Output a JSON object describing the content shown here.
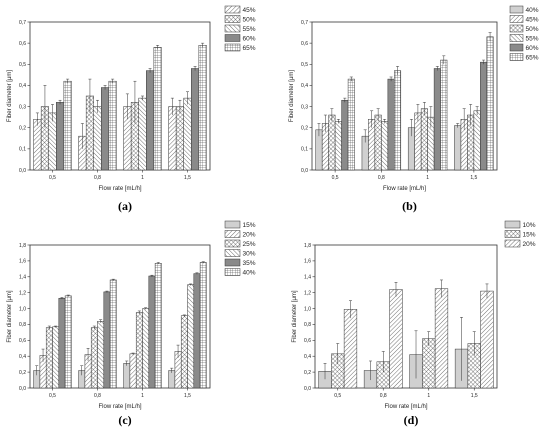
{
  "chart_data": [
    {
      "type": "bar",
      "panel_label": "(a)",
      "xlabel": "Flow rate [mL/h]",
      "ylabel": "Fiber diameter [μm]",
      "categories": [
        "0,5",
        "0,8",
        "1",
        "1,5"
      ],
      "ylim": [
        0,
        0.7
      ],
      "yticks": [
        "0,0",
        "0,1",
        "0,2",
        "0,3",
        "0,4",
        "0,5",
        "0,6",
        "0,7"
      ],
      "legend_position": "top-right",
      "series": [
        {
          "name": "45%",
          "values": [
            0.24,
            0.16,
            0.3,
            0.3
          ],
          "errors": [
            0.03,
            0.06,
            0.06,
            0.04
          ],
          "pattern": "diag-right"
        },
        {
          "name": "50%",
          "values": [
            0.3,
            0.35,
            0.32,
            0.3
          ],
          "errors": [
            0.1,
            0.08,
            0.1,
            0.03
          ],
          "pattern": "crosshatch"
        },
        {
          "name": "55%",
          "values": [
            0.27,
            0.3,
            0.34,
            0.34
          ],
          "errors": [
            0.04,
            0.03,
            0.01,
            0.03
          ],
          "pattern": "diag-left"
        },
        {
          "name": "60%",
          "values": [
            0.32,
            0.39,
            0.47,
            0.48
          ],
          "errors": [
            0.01,
            0.01,
            0.01,
            0.01
          ],
          "pattern": "solid-gray"
        },
        {
          "name": "65%",
          "values": [
            0.42,
            0.42,
            0.58,
            0.59
          ],
          "errors": [
            0.01,
            0.01,
            0.01,
            0.01
          ],
          "pattern": "grid"
        }
      ]
    },
    {
      "type": "bar",
      "panel_label": "(b)",
      "xlabel": "Flow rate [mL/h]",
      "ylabel": "Fiber diameter [μm]",
      "categories": [
        "0,5",
        "0,8",
        "1",
        "1,5"
      ],
      "ylim": [
        0,
        0.7
      ],
      "yticks": [
        "0,0",
        "0,1",
        "0,2",
        "0,3",
        "0,4",
        "0,5",
        "0,6",
        "0,7"
      ],
      "legend_position": "top-right",
      "series": [
        {
          "name": "40%",
          "values": [
            0.19,
            0.16,
            0.2,
            0.21
          ],
          "errors": [
            0.03,
            0.03,
            0.04,
            0.01
          ],
          "pattern": "light-gray"
        },
        {
          "name": "45%",
          "values": [
            0.22,
            0.24,
            0.27,
            0.24
          ],
          "errors": [
            0.04,
            0.04,
            0.04,
            0.05
          ],
          "pattern": "diag-right"
        },
        {
          "name": "50%",
          "values": [
            0.26,
            0.26,
            0.29,
            0.26
          ],
          "errors": [
            0.03,
            0.03,
            0.03,
            0.05
          ],
          "pattern": "crosshatch"
        },
        {
          "name": "55%",
          "values": [
            0.23,
            0.23,
            0.25,
            0.28
          ],
          "errors": [
            0.01,
            0.01,
            0.05,
            0.02
          ],
          "pattern": "diag-left"
        },
        {
          "name": "60%",
          "values": [
            0.33,
            0.43,
            0.48,
            0.51
          ],
          "errors": [
            0.01,
            0.01,
            0.01,
            0.01
          ],
          "pattern": "solid-gray"
        },
        {
          "name": "65%",
          "values": [
            0.43,
            0.47,
            0.52,
            0.63
          ],
          "errors": [
            0.01,
            0.02,
            0.02,
            0.02
          ],
          "pattern": "grid"
        }
      ]
    },
    {
      "type": "bar",
      "panel_label": "(c)",
      "xlabel": "Flow rate [mL/h]",
      "ylabel": "Fiber diameter [μm]",
      "categories": [
        "0,5",
        "0,8",
        "1",
        "1,5"
      ],
      "ylim": [
        0,
        1.8
      ],
      "yticks": [
        "0,0",
        "0,2",
        "0,4",
        "0,6",
        "0,8",
        "1,0",
        "1,2",
        "1,4",
        "1,6",
        "1,8"
      ],
      "legend_position": "top-right",
      "series": [
        {
          "name": "15%",
          "values": [
            0.22,
            0.22,
            0.31,
            0.22
          ],
          "errors": [
            0.06,
            0.06,
            0.03,
            0.03
          ],
          "pattern": "light-gray"
        },
        {
          "name": "20%",
          "values": [
            0.41,
            0.42,
            0.43,
            0.46
          ],
          "errors": [
            0.08,
            0.08,
            0.01,
            0.08
          ],
          "pattern": "diag-right"
        },
        {
          "name": "25%",
          "values": [
            0.76,
            0.76,
            0.95,
            0.91
          ],
          "errors": [
            0.02,
            0.02,
            0.02,
            0.01
          ],
          "pattern": "crosshatch"
        },
        {
          "name": "30%",
          "values": [
            0.77,
            0.84,
            1.0,
            1.3
          ],
          "errors": [
            0.01,
            0.02,
            0.01,
            0.01
          ],
          "pattern": "diag-left"
        },
        {
          "name": "35%",
          "values": [
            1.13,
            1.21,
            1.41,
            1.44
          ],
          "errors": [
            0.01,
            0.01,
            0.01,
            0.01
          ],
          "pattern": "solid-gray"
        },
        {
          "name": "40%",
          "values": [
            1.16,
            1.36,
            1.57,
            1.58
          ],
          "errors": [
            0.01,
            0.01,
            0.01,
            0.01
          ],
          "pattern": "grid"
        }
      ]
    },
    {
      "type": "bar",
      "panel_label": "(d)",
      "xlabel": "Flow rate [mL/h]",
      "ylabel": "Fiber diameter [μm]",
      "categories": [
        "0,5",
        "0,8",
        "1",
        "1,5"
      ],
      "ylim": [
        0,
        1.8
      ],
      "yticks": [
        "0,0",
        "0,2",
        "0,4",
        "0,6",
        "0,8",
        "1,0",
        "1,2",
        "1,4",
        "1,6",
        "1,8"
      ],
      "legend_position": "top-right",
      "series": [
        {
          "name": "10%",
          "values": [
            0.21,
            0.22,
            0.42,
            0.49
          ],
          "errors": [
            0.1,
            0.12,
            0.3,
            0.4
          ],
          "pattern": "light-gray"
        },
        {
          "name": "15%",
          "values": [
            0.43,
            0.33,
            0.62,
            0.56
          ],
          "errors": [
            0.13,
            0.13,
            0.09,
            0.15
          ],
          "pattern": "crosshatch"
        },
        {
          "name": "20%",
          "values": [
            0.99,
            1.24,
            1.25,
            1.22
          ],
          "errors": [
            0.11,
            0.09,
            0.11,
            0.09
          ],
          "pattern": "diag-right"
        }
      ]
    }
  ]
}
